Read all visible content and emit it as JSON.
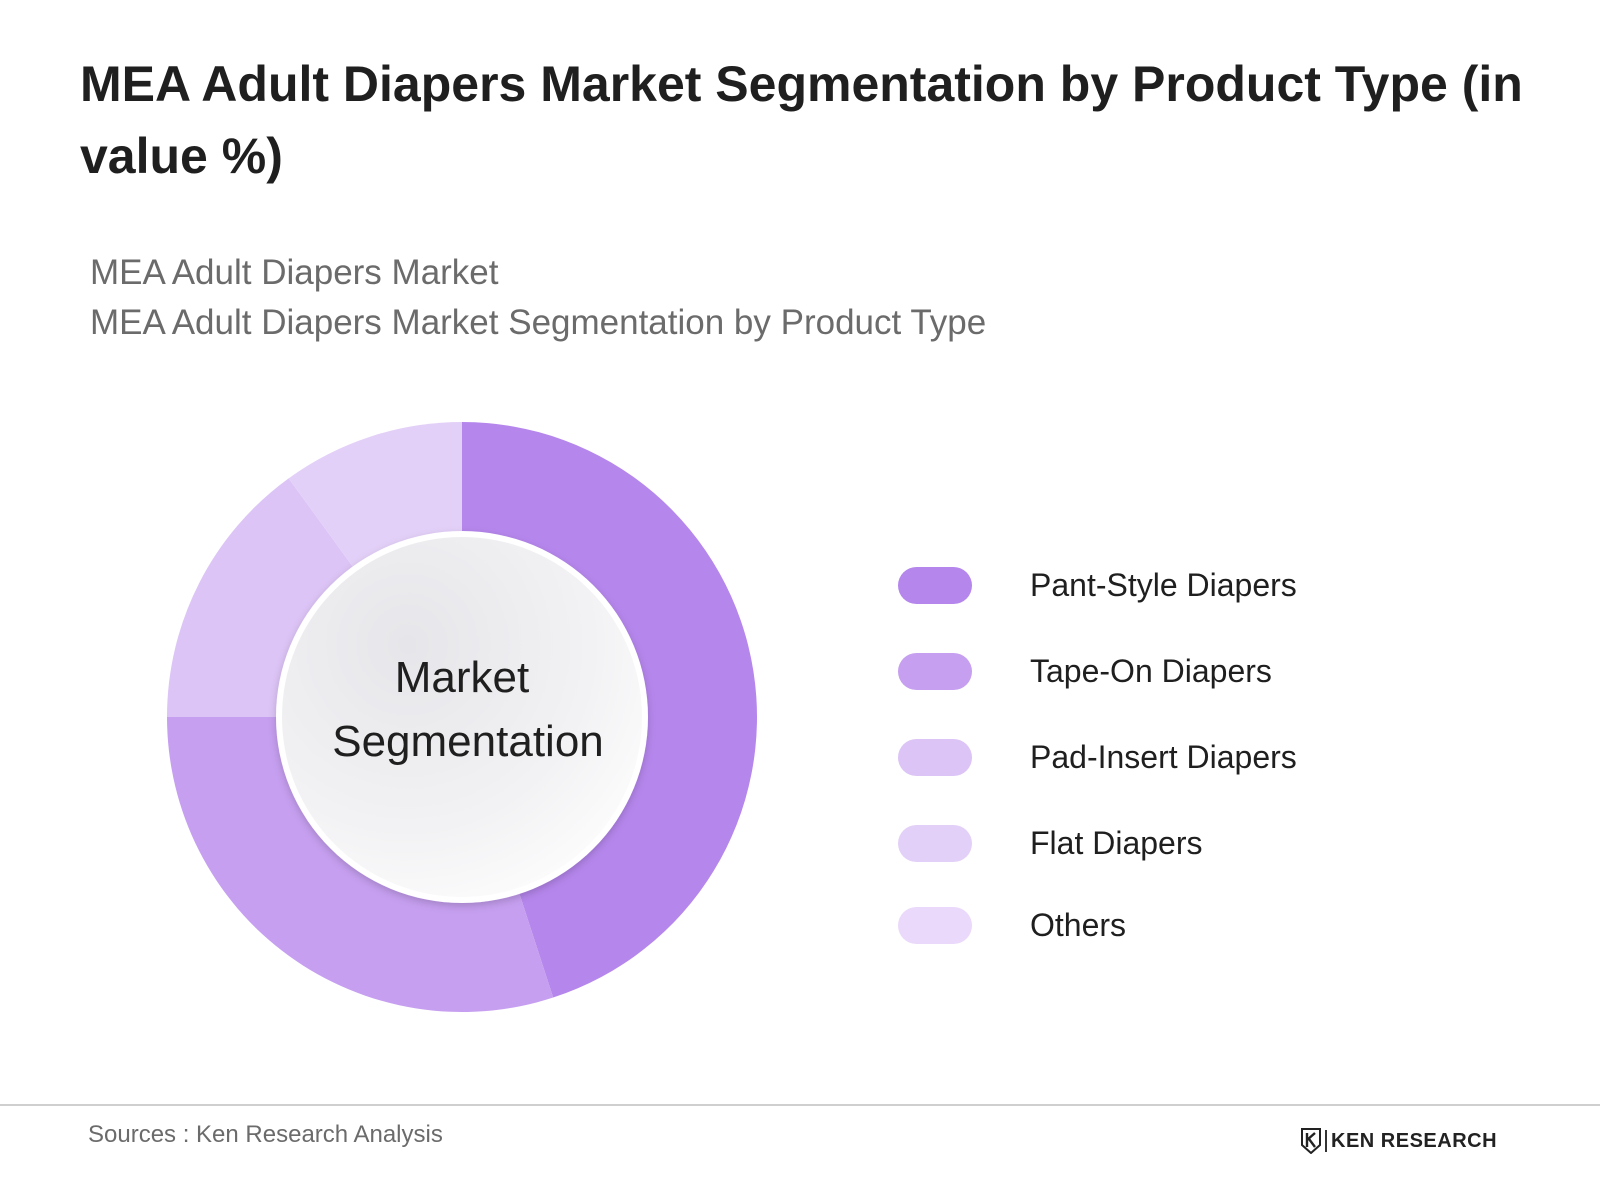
{
  "header": {
    "title": "MEA Adult Diapers Market Segmentation by Product Type (in value %)",
    "subtitle_line1": "MEA Adult Diapers Market",
    "subtitle_line2": "MEA Adult Diapers Market Segmentation by Product Type"
  },
  "chart_data": {
    "type": "pie",
    "variant": "donut",
    "center_label_line1": "Market",
    "center_label_line2": "Segmentation",
    "legend_position": "right",
    "slices": [
      {
        "label": "Pant-Style Diapers",
        "value": 45,
        "color": "#b586ec"
      },
      {
        "label": "Tape-On Diapers",
        "value": 30,
        "color": "#c69ff0"
      },
      {
        "label": "Pad-Insert Diapers",
        "value": 15,
        "color": "#dcc4f6"
      },
      {
        "label": "Flat Diapers",
        "value": 10,
        "color": "#e3d0f8"
      },
      {
        "label": "Others",
        "value": 0,
        "color": "#ead9fa"
      }
    ]
  },
  "footer": {
    "source": "Sources : Ken Research Analysis",
    "logo_text": "KEN RESEARCH"
  }
}
